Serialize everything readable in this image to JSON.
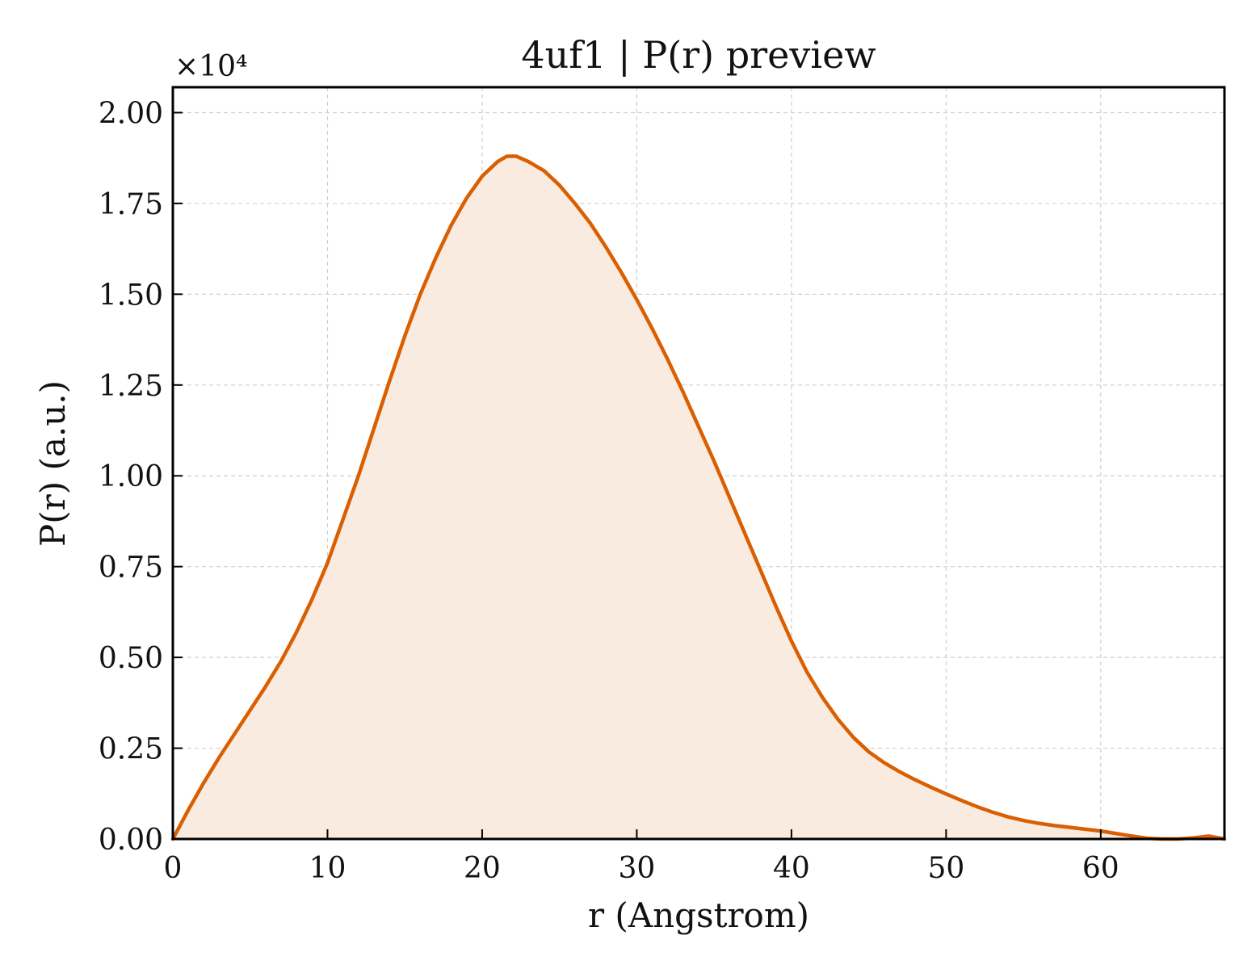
{
  "chart_data": {
    "type": "area",
    "title": "4uf1 | P(r) preview",
    "xlabel": "r (Angstrom)",
    "ylabel": "P(r) (a.u.)",
    "y_offset_label": "×10⁴",
    "y_scale_factor": 10000,
    "xlim": [
      0,
      68
    ],
    "ylim": [
      0,
      2.07
    ],
    "x_ticks": [
      0,
      10,
      20,
      30,
      40,
      50,
      60
    ],
    "x_tick_labels": [
      "0",
      "10",
      "20",
      "30",
      "40",
      "50",
      "60"
    ],
    "y_ticks": [
      0,
      0.25,
      0.5,
      0.75,
      1.0,
      1.25,
      1.5,
      1.75,
      2.0
    ],
    "y_tick_labels": [
      "0.00",
      "0.25",
      "0.50",
      "0.75",
      "1.00",
      "1.25",
      "1.50",
      "1.75",
      "2.00"
    ],
    "grid": true,
    "colors": {
      "line": "#d95f02",
      "fill": "#f9ebe0"
    },
    "series": [
      {
        "x": [
          0,
          1,
          2,
          3,
          4,
          5,
          6,
          7,
          8,
          9,
          10,
          11,
          12,
          13,
          14,
          15,
          16,
          17,
          18,
          19,
          20,
          21,
          21.6,
          22.2,
          23,
          24,
          25,
          26,
          27,
          28,
          29,
          30,
          31,
          32,
          33,
          34,
          35,
          36,
          37,
          38,
          39,
          40,
          41,
          42,
          43,
          44,
          45,
          46,
          47,
          48,
          49,
          50,
          51,
          52,
          53,
          54,
          55,
          56,
          57,
          58,
          59,
          60,
          61,
          62,
          63,
          64,
          65,
          66,
          67,
          68
        ],
        "values": [
          0.0,
          0.08,
          0.155,
          0.225,
          0.29,
          0.355,
          0.42,
          0.49,
          0.57,
          0.66,
          0.76,
          0.88,
          1.0,
          1.13,
          1.26,
          1.385,
          1.5,
          1.6,
          1.69,
          1.765,
          1.825,
          1.865,
          1.88,
          1.88,
          1.865,
          1.84,
          1.8,
          1.75,
          1.695,
          1.63,
          1.56,
          1.485,
          1.405,
          1.32,
          1.23,
          1.135,
          1.04,
          0.94,
          0.84,
          0.74,
          0.64,
          0.545,
          0.46,
          0.39,
          0.33,
          0.28,
          0.24,
          0.21,
          0.185,
          0.163,
          0.143,
          0.124,
          0.106,
          0.089,
          0.074,
          0.061,
          0.051,
          0.043,
          0.037,
          0.032,
          0.027,
          0.022,
          0.015,
          0.008,
          0.002,
          0.0,
          0.0,
          0.003,
          0.008,
          0.0
        ]
      }
    ]
  }
}
